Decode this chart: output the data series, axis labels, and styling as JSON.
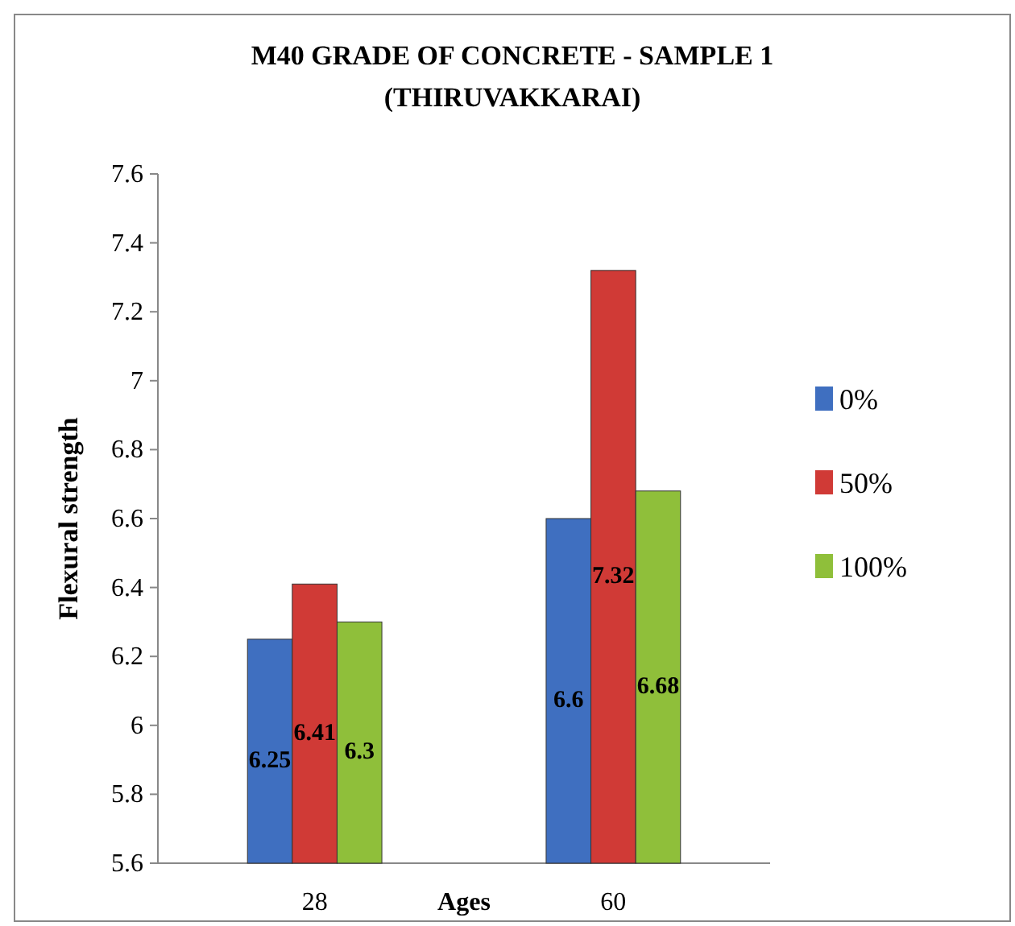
{
  "chart_data": {
    "type": "bar",
    "title": "M40 GRADE OF CONCRETE - SAMPLE 1\n(THIRUVAKKARAI)",
    "xlabel": "Ages",
    "ylabel": "Flexural strength",
    "categories": [
      "28",
      "60"
    ],
    "series": [
      {
        "name": "0%",
        "color": "#3f6fc0",
        "values": [
          6.25,
          6.6
        ]
      },
      {
        "name": "50%",
        "color": "#d03a36",
        "values": [
          6.41,
          7.32
        ]
      },
      {
        "name": "100%",
        "color": "#8fbf3a",
        "values": [
          6.3,
          6.68
        ]
      }
    ],
    "ylim": [
      5.6,
      7.6
    ],
    "yticks": [
      5.6,
      5.8,
      6,
      6.2,
      6.4,
      6.6,
      6.8,
      7,
      7.2,
      7.4,
      7.6
    ],
    "grid": false,
    "legend": "right",
    "data_labels": true
  }
}
